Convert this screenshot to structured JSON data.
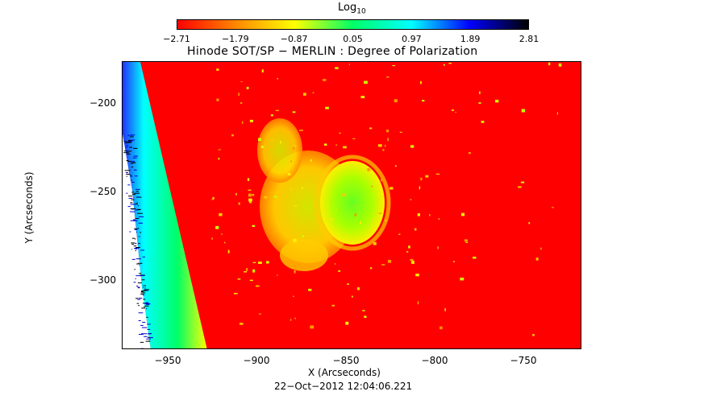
{
  "colorbar": {
    "title": "Log",
    "title_sub": "10",
    "ticks": [
      "−2.71",
      "−1.79",
      "−0.87",
      "0.05",
      "0.97",
      "1.89",
      "2.81"
    ],
    "colors": [
      "#ff0000",
      "#ff8800",
      "#ffff00",
      "#00ff66",
      "#00ffff",
      "#0000ff",
      "#000000"
    ]
  },
  "plot": {
    "title": "Hinode SOT/SP − MERLIN : Degree of Polarization",
    "xlabel": "X (Arcseconds)",
    "ylabel": "Y (Arcseconds)",
    "date": "22−Oct−2012 12:04:06.221",
    "x_ticks": [
      "−950",
      "−900",
      "−850",
      "−800",
      "−750"
    ],
    "y_ticks": [
      "−200",
      "−250",
      "−300"
    ],
    "background_color": "#ff0000"
  }
}
